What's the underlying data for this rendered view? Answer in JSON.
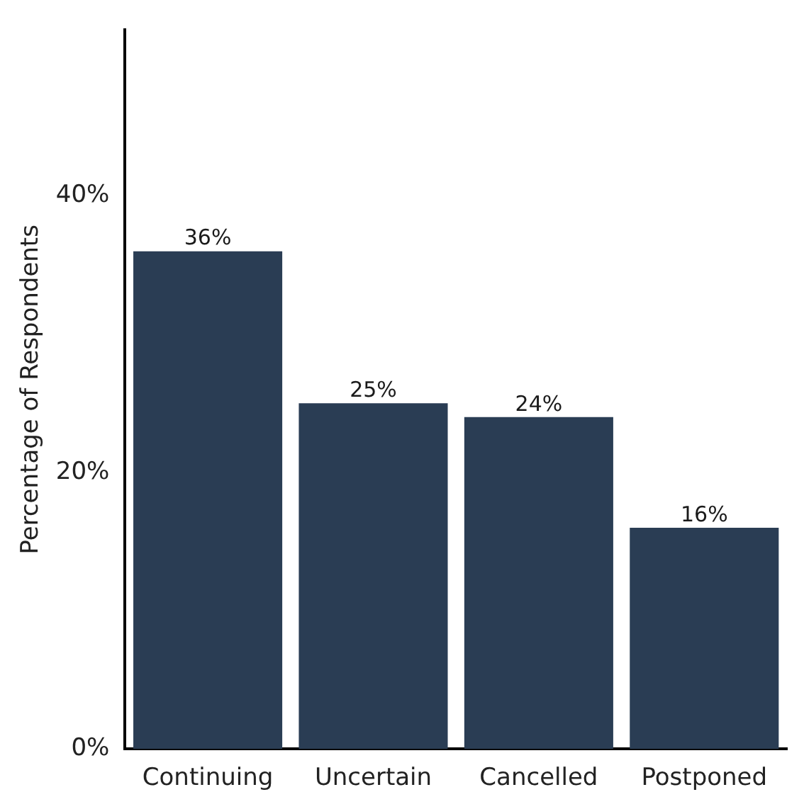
{
  "chart_data": {
    "type": "bar",
    "ylabel": "Percentage of Respondents",
    "categories": [
      "Continuing",
      "Uncertain",
      "Cancelled",
      "Postponed"
    ],
    "values": [
      36,
      25,
      24,
      16
    ],
    "color": "#2a3d54",
    "value_labels": [
      "36%",
      "25%",
      "24%",
      "16%"
    ],
    "ylim": [
      0,
      52
    ],
    "yticks": [
      {
        "value": 0,
        "label": "0%"
      },
      {
        "value": 20,
        "label": "20%"
      },
      {
        "value": 40,
        "label": "40%"
      }
    ],
    "grid": false,
    "legend": false
  }
}
